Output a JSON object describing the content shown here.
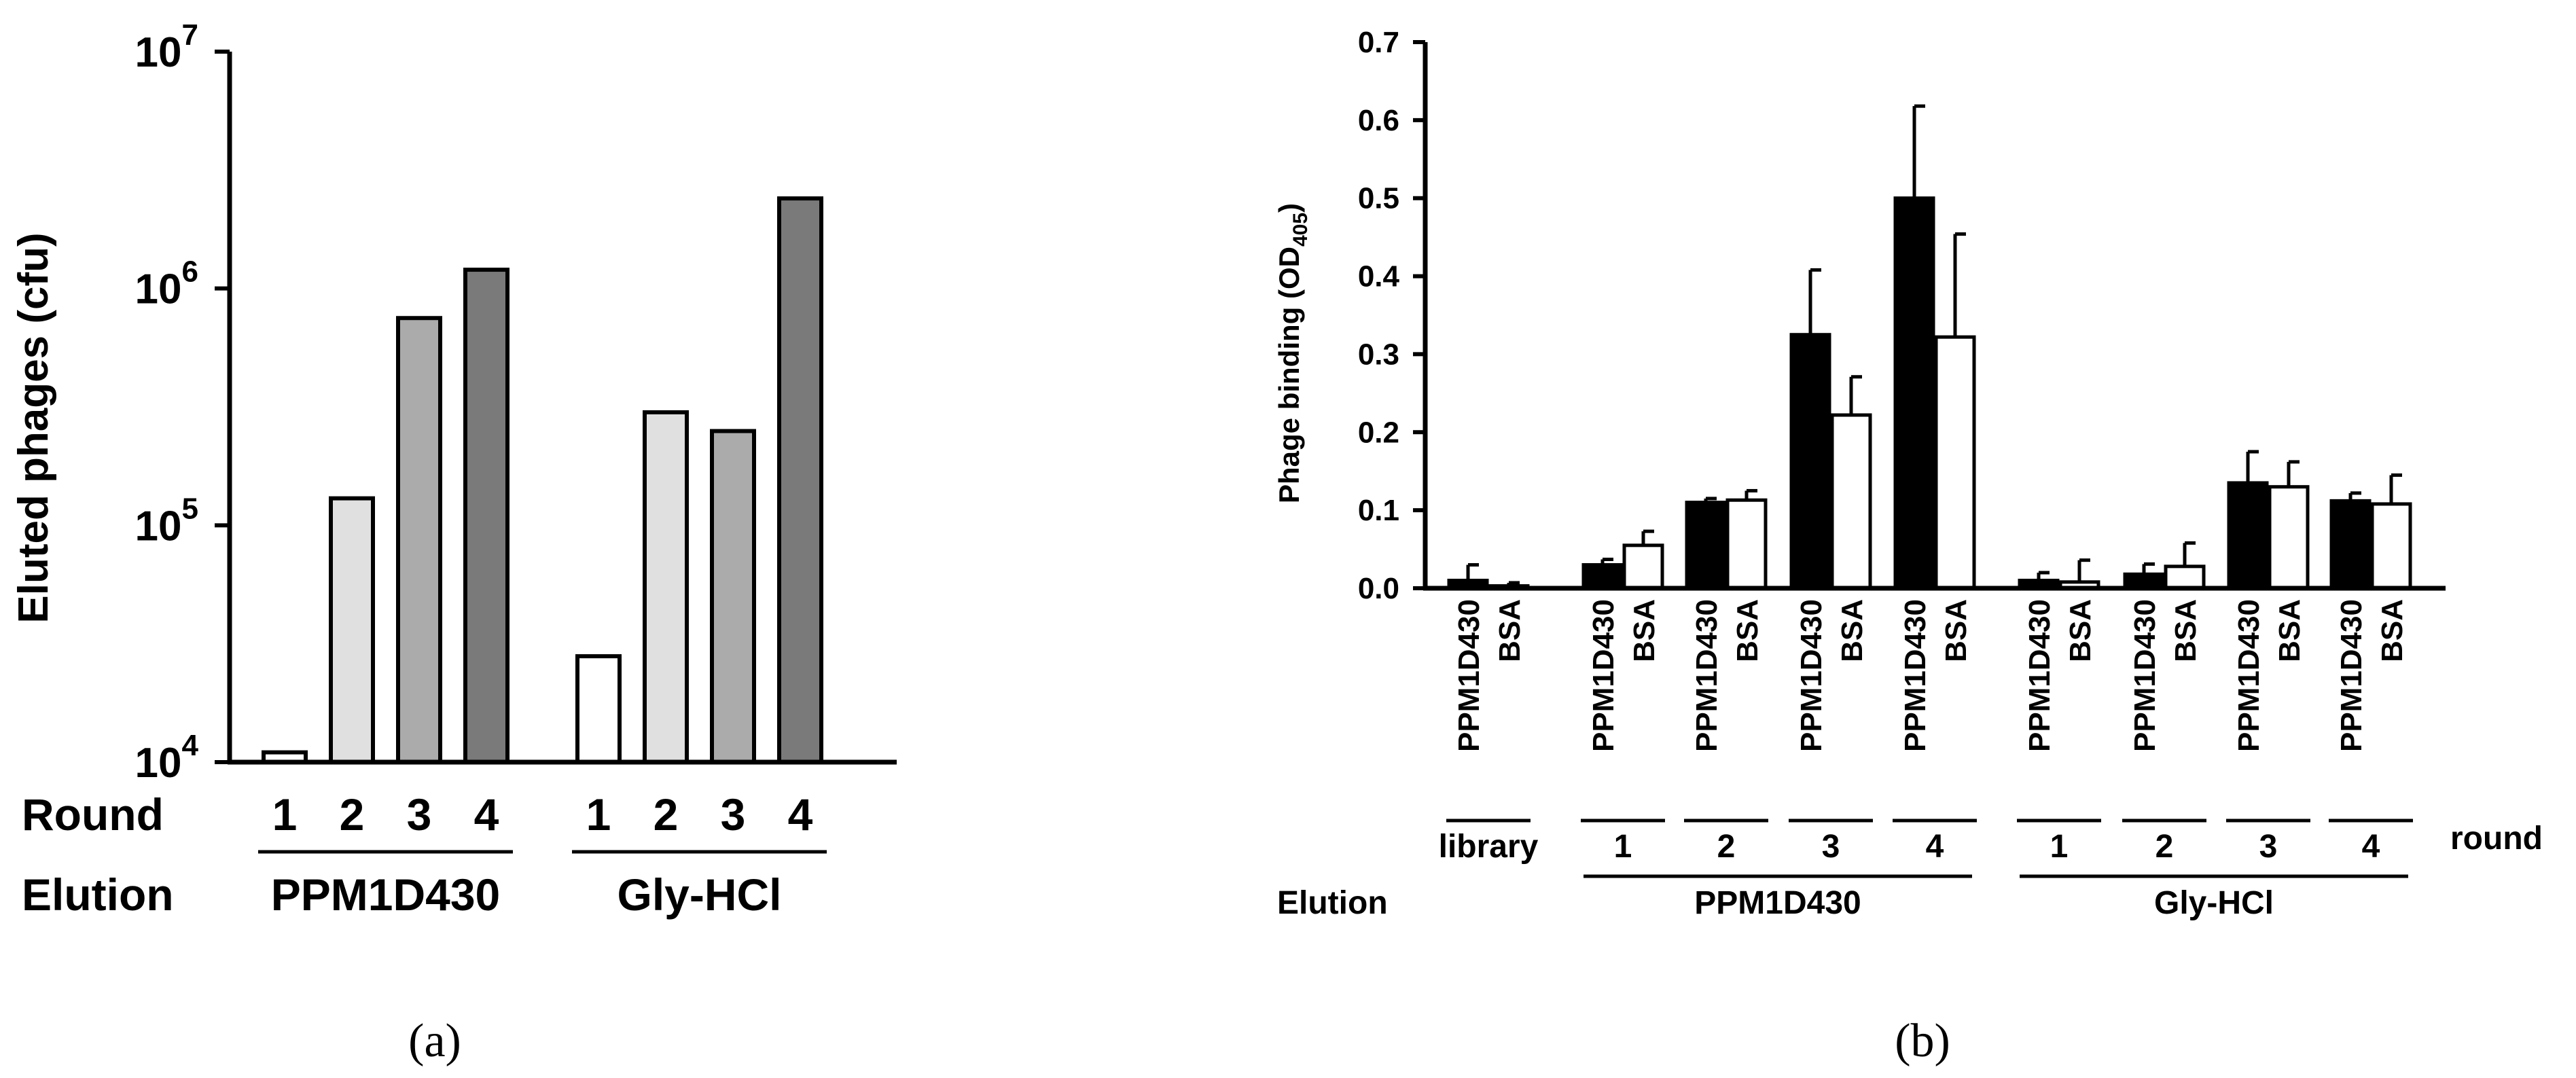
{
  "chart_data": [
    {
      "panel": "(a)",
      "type": "bar",
      "ylabel": "Eluted phages (cfu)",
      "yscale": "log",
      "ylim": [
        10000,
        10000000
      ],
      "y_ticks": [
        {
          "value": 10000,
          "base": "10",
          "exp": "4"
        },
        {
          "value": 100000,
          "base": "10",
          "exp": "5"
        },
        {
          "value": 1000000,
          "base": "10",
          "exp": "6"
        },
        {
          "value": 10000000,
          "base": "10",
          "exp": "7"
        }
      ],
      "row_labels": {
        "round": "Round",
        "elution": "Elution"
      },
      "groups": [
        {
          "name": "PPM1D430",
          "rounds": [
            "1",
            "2",
            "3",
            "4"
          ],
          "values": [
            11000,
            130000,
            750000,
            1200000
          ]
        },
        {
          "name": "Gly-HCl",
          "rounds": [
            "1",
            "2",
            "3",
            "4"
          ],
          "values": [
            28000,
            300000,
            250000,
            2400000
          ]
        }
      ],
      "round_colors": [
        "#ffffff",
        "#e0e0e0",
        "#ababab",
        "#7a7a7a"
      ]
    },
    {
      "panel": "(b)",
      "type": "bar",
      "ylabel": {
        "main": "Phage binding (OD",
        "sub": "405",
        "end": ")"
      },
      "ylim": [
        0,
        0.7
      ],
      "y_ticks": [
        "0.0",
        "0.1",
        "0.2",
        "0.3",
        "0.4",
        "0.5",
        "0.6",
        "0.7"
      ],
      "series_colors": {
        "PPM1D430": "#000000",
        "BSA": "#ffffff"
      },
      "row_labels": {
        "round": "round",
        "elution": "Elution"
      },
      "pairs": [
        {
          "round": "library",
          "elution": "",
          "labels": [
            "PPM1D430",
            "BSA"
          ],
          "values": [
            0.01,
            0.003
          ],
          "errors": [
            0.02,
            0.004
          ]
        },
        {
          "round": "1",
          "elution": "PPM1D430",
          "labels": [
            "PPM1D430",
            "BSA"
          ],
          "values": [
            0.03,
            0.055
          ],
          "errors": [
            0.007,
            0.018
          ]
        },
        {
          "round": "2",
          "elution": "PPM1D430",
          "labels": [
            "PPM1D430",
            "BSA"
          ],
          "values": [
            0.11,
            0.113
          ],
          "errors": [
            0.005,
            0.012
          ]
        },
        {
          "round": "3",
          "elution": "PPM1D430",
          "labels": [
            "PPM1D430",
            "BSA"
          ],
          "values": [
            0.325,
            0.222
          ],
          "errors": [
            0.083,
            0.049
          ]
        },
        {
          "round": "4",
          "elution": "PPM1D430",
          "labels": [
            "PPM1D430",
            "BSA"
          ],
          "values": [
            0.5,
            0.322
          ],
          "errors": [
            0.118,
            0.132
          ]
        },
        {
          "round": "1",
          "elution": "Gly-HCl",
          "labels": [
            "PPM1D430",
            "BSA"
          ],
          "values": [
            0.01,
            0.008
          ],
          "errors": [
            0.01,
            0.028
          ]
        },
        {
          "round": "2",
          "elution": "Gly-HCl",
          "labels": [
            "PPM1D430",
            "BSA"
          ],
          "values": [
            0.018,
            0.028
          ],
          "errors": [
            0.013,
            0.03
          ]
        },
        {
          "round": "3",
          "elution": "Gly-HCl",
          "labels": [
            "PPM1D430",
            "BSA"
          ],
          "values": [
            0.135,
            0.13
          ],
          "errors": [
            0.04,
            0.032
          ]
        },
        {
          "round": "4",
          "elution": "Gly-HCl",
          "labels": [
            "PPM1D430",
            "BSA"
          ],
          "values": [
            0.112,
            0.108
          ],
          "errors": [
            0.01,
            0.037
          ]
        }
      ],
      "elution_groups": [
        "PPM1D430",
        "Gly-HCl"
      ]
    }
  ]
}
